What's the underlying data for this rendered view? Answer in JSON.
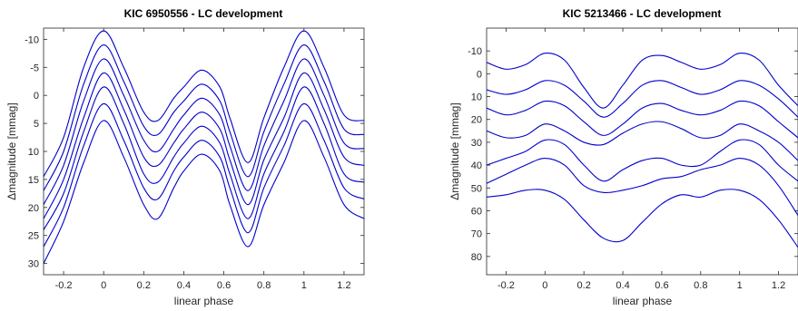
{
  "chart_data": [
    {
      "type": "line",
      "title": "KIC 6950556 - LC development",
      "xlabel": "linear phase",
      "ylabel": "Δmagnitude [mmag]",
      "xlim": [
        -0.3,
        1.3
      ],
      "ylim": [
        -12,
        32
      ],
      "y_reversed": true,
      "xticks": [
        -0.2,
        0,
        0.2,
        0.4,
        0.6,
        0.8,
        1,
        1.2
      ],
      "yticks": [
        -10,
        -5,
        0,
        5,
        10,
        15,
        20,
        25,
        30
      ],
      "xtick_labels": [
        "-0.2",
        "0",
        "0.2",
        "0.4",
        "0.6",
        "0.8",
        "1",
        "1.2"
      ],
      "ytick_labels": [
        "-10",
        "-5",
        "0",
        "5",
        "10",
        "15",
        "20",
        "25",
        "30"
      ],
      "line_color": "#0000cc",
      "x": [
        -0.3,
        -0.2,
        -0.1,
        0,
        0.1,
        0.2,
        0.27,
        0.35,
        0.4,
        0.49,
        0.58,
        0.63,
        0.72,
        0.8,
        0.9,
        1,
        1.1,
        1.2,
        1.3
      ],
      "series": [
        {
          "values": [
            14.5,
            7.5,
            -5.0,
            -11.5,
            -5.0,
            3.0,
            4.5,
            0.5,
            -1.5,
            -4.5,
            -1.5,
            4.0,
            12.0,
            4.0,
            -5.0,
            -11.5,
            -5.0,
            3.5,
            4.5
          ]
        },
        {
          "values": [
            17.0,
            10.0,
            -2.0,
            -9.0,
            -2.5,
            5.5,
            7.0,
            3.0,
            1.0,
            -2.0,
            1.0,
            6.5,
            14.5,
            6.5,
            -2.0,
            -9.0,
            -2.5,
            6.0,
            7.0
          ]
        },
        {
          "values": [
            19.5,
            12.5,
            1.0,
            -6.5,
            0.0,
            8.0,
            10.0,
            6.0,
            3.5,
            0.5,
            3.5,
            9.0,
            17.0,
            9.0,
            1.0,
            -6.5,
            0.0,
            8.5,
            9.5
          ]
        },
        {
          "values": [
            22.0,
            15.0,
            4.0,
            -4.0,
            2.5,
            11.0,
            12.5,
            8.5,
            6.0,
            3.0,
            6.0,
            11.5,
            19.5,
            11.5,
            4.0,
            -4.0,
            2.5,
            11.0,
            12.5
          ]
        },
        {
          "values": [
            24.0,
            17.5,
            6.5,
            -1.5,
            5.0,
            14.0,
            15.5,
            11.0,
            8.5,
            5.5,
            8.5,
            14.0,
            22.0,
            14.0,
            6.5,
            -1.5,
            5.0,
            14.0,
            15.5
          ]
        },
        {
          "values": [
            27.0,
            20.0,
            9.0,
            1.5,
            8.0,
            16.5,
            18.5,
            13.5,
            11.0,
            8.0,
            11.0,
            16.5,
            24.5,
            16.5,
            9.0,
            1.5,
            8.0,
            16.5,
            18.5
          ]
        },
        {
          "values": [
            30.0,
            22.5,
            12.0,
            4.5,
            11.0,
            19.5,
            22.0,
            16.5,
            13.5,
            10.5,
            13.5,
            19.5,
            27.0,
            19.5,
            12.0,
            4.5,
            11.0,
            19.5,
            22.0
          ]
        }
      ]
    },
    {
      "type": "line",
      "title": "KIC 5213466 - LC development",
      "xlabel": "linear phase",
      "ylabel": "Δmagnitude [mmag]",
      "xlim": [
        -0.3,
        1.3
      ],
      "ylim": [
        -20,
        88
      ],
      "y_reversed": true,
      "xticks": [
        -0.2,
        0,
        0.2,
        0.4,
        0.6,
        0.8,
        1,
        1.2
      ],
      "yticks": [
        -10,
        0,
        10,
        20,
        30,
        40,
        50,
        60,
        70,
        80
      ],
      "xtick_labels": [
        "-0.2",
        "0",
        "0.2",
        "0.4",
        "0.6",
        "0.8",
        "1",
        "1.2"
      ],
      "ytick_labels": [
        "-10",
        "0",
        "10",
        "20",
        "30",
        "40",
        "50",
        "60",
        "70",
        "80"
      ],
      "line_color": "#0000cc",
      "x": [
        -0.3,
        -0.2,
        -0.1,
        0,
        0.1,
        0.2,
        0.3,
        0.4,
        0.5,
        0.6,
        0.7,
        0.8,
        0.9,
        1,
        1.1,
        1.2,
        1.3
      ],
      "series": [
        {
          "values": [
            -5,
            -2,
            -4,
            -9,
            -6,
            6,
            15,
            5,
            -6,
            -8,
            -5,
            -2,
            -4,
            -9,
            -6,
            5,
            14
          ]
        },
        {
          "values": [
            7,
            9,
            7,
            3,
            5,
            12,
            19,
            13,
            5,
            3,
            6,
            9,
            7,
            3,
            5,
            11,
            19
          ]
        },
        {
          "values": [
            15,
            18,
            16,
            12,
            14,
            21,
            27,
            22,
            15,
            13,
            16,
            18,
            16,
            12,
            14,
            21,
            28
          ]
        },
        {
          "values": [
            25,
            28,
            27,
            22,
            25,
            30,
            31,
            26,
            22,
            21,
            24,
            28,
            27,
            22,
            25,
            30,
            38
          ]
        },
        {
          "values": [
            40,
            37,
            34,
            29,
            31,
            40,
            47,
            42,
            38,
            37,
            40,
            40,
            34,
            29,
            31,
            40,
            47
          ]
        },
        {
          "values": [
            48,
            44,
            40,
            37,
            40,
            49,
            52,
            51,
            49,
            46,
            45,
            42,
            40,
            37,
            40,
            49,
            62
          ]
        },
        {
          "values": [
            54,
            53,
            51,
            51,
            55,
            64,
            72,
            73,
            65,
            57,
            53,
            54,
            51,
            51,
            55,
            64,
            76
          ]
        }
      ]
    }
  ]
}
